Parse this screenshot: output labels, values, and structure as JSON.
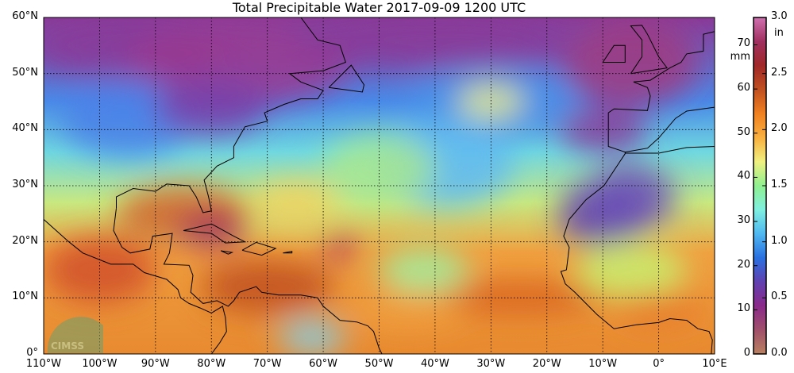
{
  "title": "Total Precipitable Water  2017-09-09 1200 UTC",
  "map": {
    "lon_range": [
      -110,
      10
    ],
    "lat_range": [
      0,
      60
    ],
    "lat_labels": [
      "0°",
      "10°N",
      "20°N",
      "30°N",
      "40°N",
      "50°N",
      "60°N"
    ],
    "lon_labels": [
      "110°W",
      "100°W",
      "90°W",
      "80°W",
      "70°W",
      "60°W",
      "50°W",
      "40°W",
      "30°W",
      "20°W",
      "10°W",
      "0°",
      "10°E"
    ],
    "gridlines": "dotted, every 10°",
    "logo_text": "CIMSS"
  },
  "colorbar": {
    "mm_unit": "mm",
    "in_unit": "in",
    "mm_ticks": [
      "0",
      "10",
      "20",
      "30",
      "40",
      "50",
      "60",
      "70"
    ],
    "in_ticks": [
      "0.0",
      "0.5",
      "1.0",
      "1.5",
      "2.0",
      "2.5",
      "3.0"
    ],
    "range_mm": [
      0,
      76.2
    ],
    "colors": [
      "#b98060",
      "#a0506a",
      "#8a2a8a",
      "#6040b0",
      "#2a70e0",
      "#50b8f0",
      "#80f0e0",
      "#90f090",
      "#f0f080",
      "#f8b040",
      "#f08020",
      "#c05020",
      "#a02828",
      "#a03060",
      "#d070b0"
    ]
  }
}
